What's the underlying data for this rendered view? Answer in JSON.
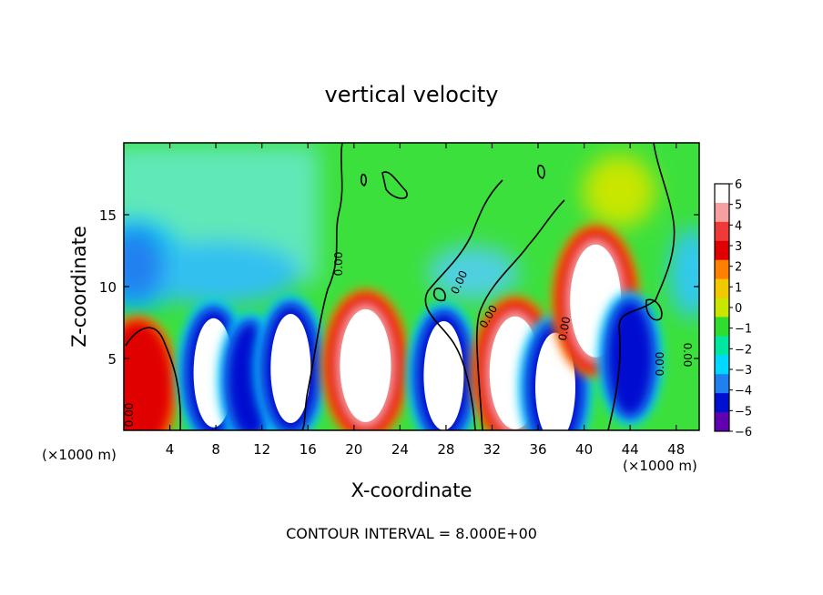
{
  "chart_data": {
    "type": "heatmap",
    "title": "vertical velocity",
    "xlabel": "X-coordinate",
    "ylabel": "Z-coordinate",
    "x_unit": "(×1000 m)",
    "x_unit_right": "(×1000 m)",
    "xlim": [
      0,
      50
    ],
    "ylim": [
      0,
      20
    ],
    "x_ticks": [
      4,
      8,
      12,
      16,
      20,
      24,
      28,
      32,
      36,
      40,
      44,
      48
    ],
    "y_ticks": [
      5,
      10,
      15
    ],
    "colorbar": {
      "min": -6,
      "max": 6,
      "ticks": [
        6,
        5,
        4,
        3,
        2,
        1,
        0,
        -1,
        -2,
        -3,
        -4,
        -5,
        -6
      ],
      "colors": [
        "#ffffff",
        "#f5a0a0",
        "#f03a3a",
        "#e00000",
        "#ff8000",
        "#f2c800",
        "#c8e600",
        "#30dc30",
        "#00e8a0",
        "#00d8ff",
        "#2080f0",
        "#0010d0",
        "#6000b0"
      ]
    },
    "contour_labels": [
      "0.00",
      "0.00",
      "0.00",
      "0.00",
      "0.00",
      "0.00",
      "0.00"
    ],
    "footer": "CONTOUR INTERVAL = 8.000E+00",
    "features": [
      {
        "kind": "updraft",
        "x": 1.2,
        "z": 3.0,
        "w": 4.5
      },
      {
        "kind": "downdraft",
        "x": 7.8,
        "z": 4.0,
        "w": -6
      },
      {
        "kind": "downdraft",
        "x": 11.0,
        "z": 3.5,
        "w": -4
      },
      {
        "kind": "downdraft",
        "x": 14.5,
        "z": 4.3,
        "w": -6
      },
      {
        "kind": "updraft",
        "x": 21.0,
        "z": 4.5,
        "w": 6
      },
      {
        "kind": "downdraft",
        "x": 27.8,
        "z": 3.8,
        "w": -6
      },
      {
        "kind": "updraft",
        "x": 34.0,
        "z": 4.0,
        "w": 6
      },
      {
        "kind": "downdraft",
        "x": 37.5,
        "z": 3.0,
        "w": -6
      },
      {
        "kind": "updraft",
        "x": 41.0,
        "z": 9.0,
        "w": 6
      },
      {
        "kind": "downdraft",
        "x": 44.0,
        "z": 5.0,
        "w": -4
      },
      {
        "kind": "weak-downdraft",
        "x": 1.0,
        "z": 11.5,
        "w": -2.5
      }
    ]
  }
}
